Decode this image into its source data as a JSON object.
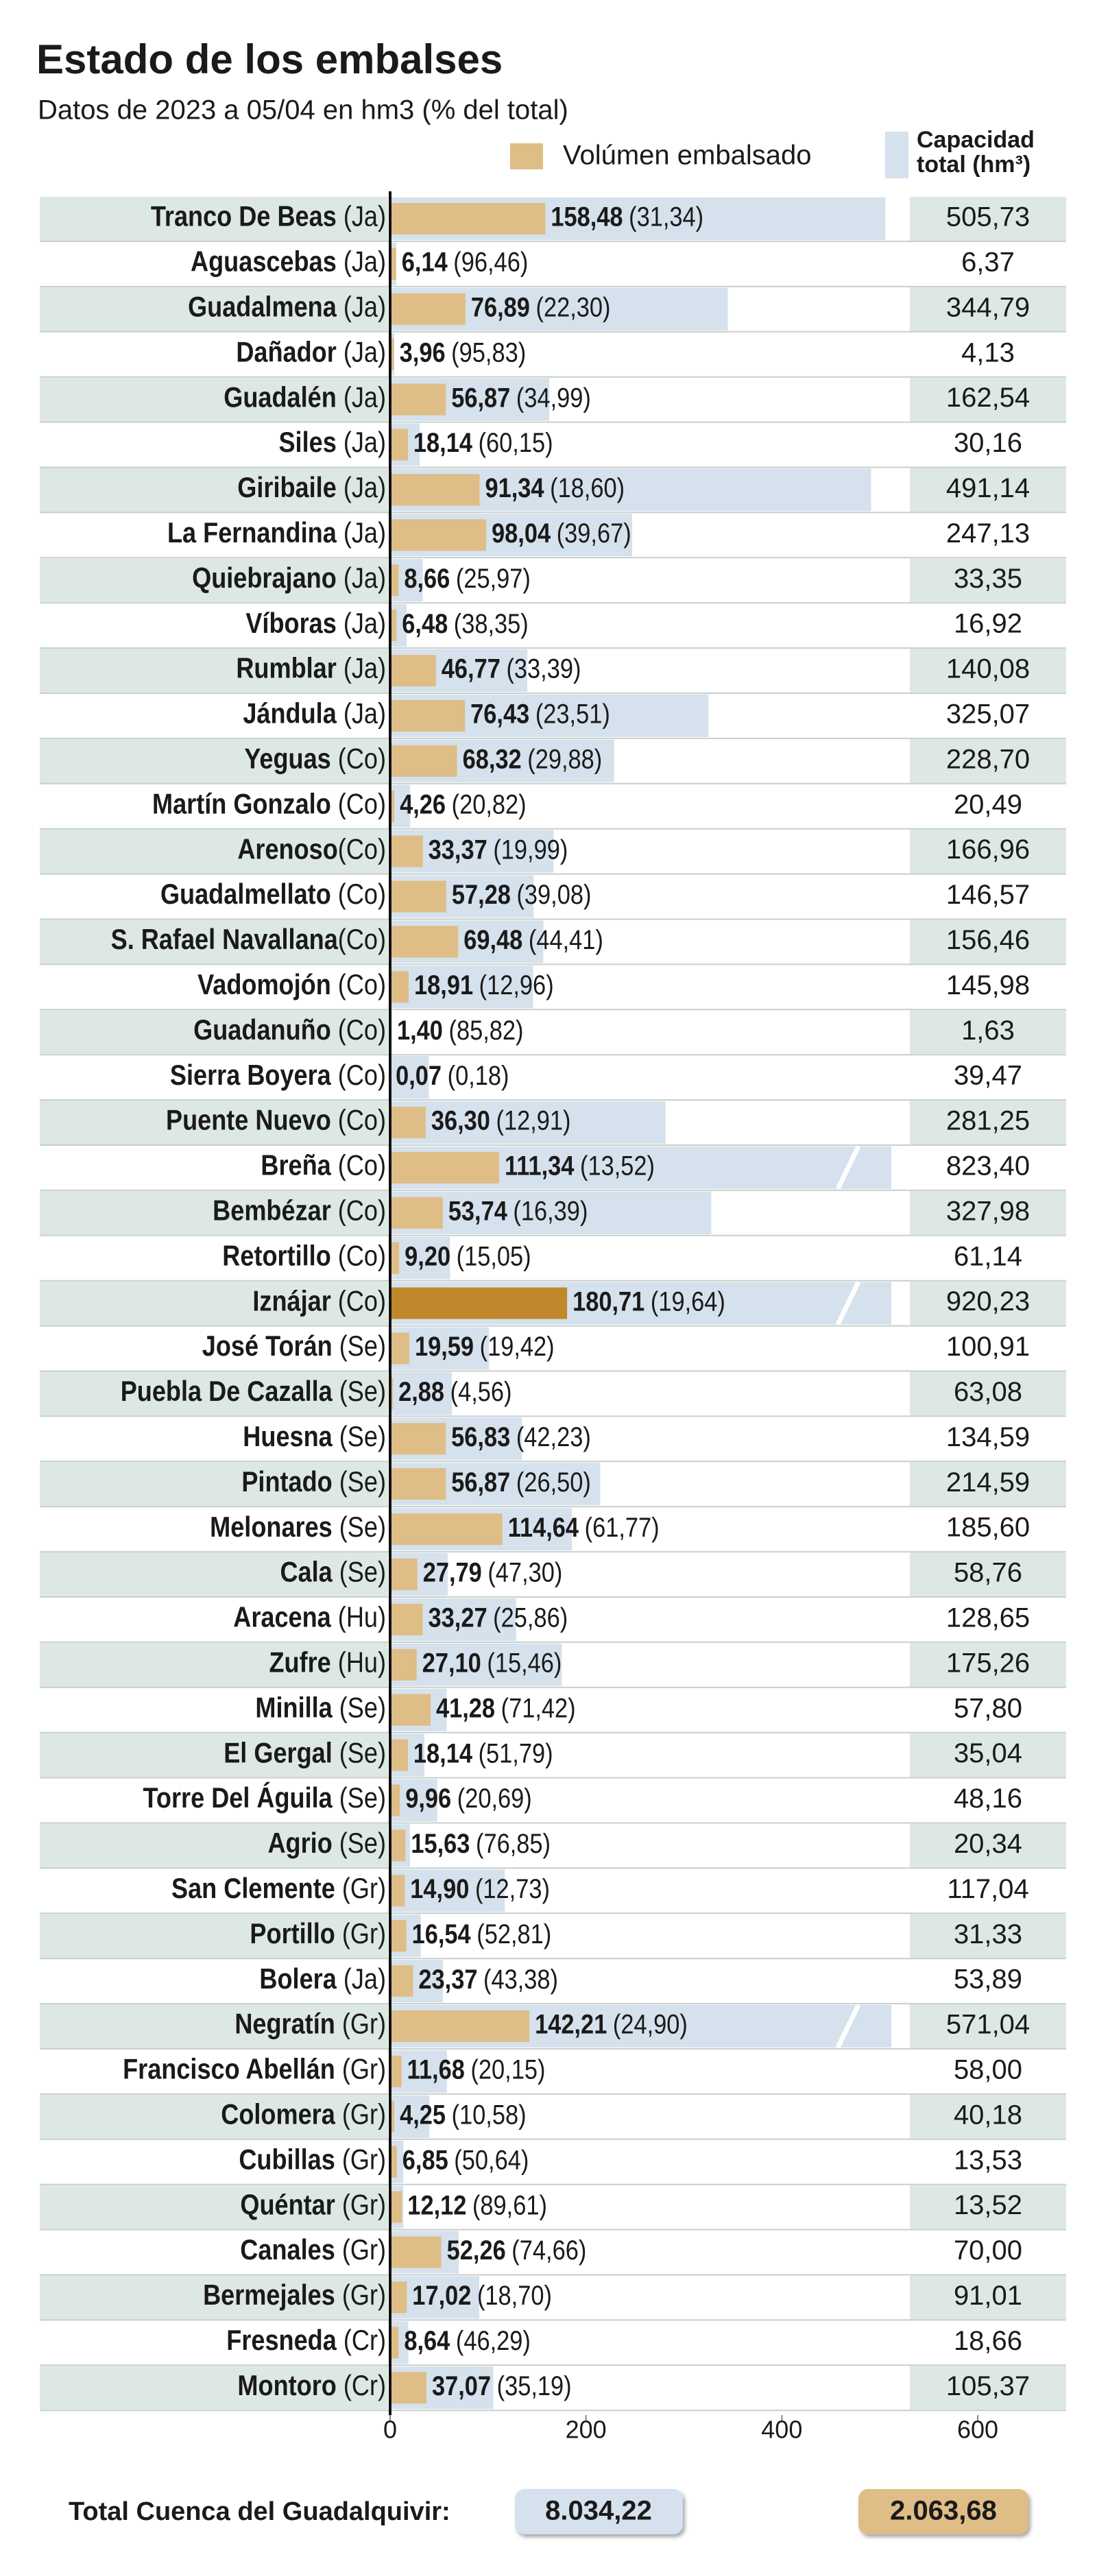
{
  "chart_data": {
    "type": "bar",
    "title": "Estado de los embalses",
    "subtitle": "Datos de 2023 a 05/04 en hm3 (% del total)",
    "categories": [
      "Tranco De Beas (Ja)",
      "Aguascebas (Ja)",
      "Guadalmena (Ja)",
      "Dañador (Ja)",
      "Guadalén (Ja)",
      "Siles (Ja)",
      "Giribaile (Ja)",
      "La Fernandina (Ja)",
      "Quiebrajano (Ja)",
      "Víboras (Ja)",
      "Rumblar (Ja)",
      "Jándula (Ja)",
      "Yeguas (Co)",
      "Martín Gonzalo (Co)",
      "Arenoso(Co)",
      "Guadalmellato (Co)",
      "S. Rafael Navallana(Co)",
      "Vadomojón (Co)",
      "Guadanuño (Co)",
      "Sierra Boyera (Co)",
      "Puente Nuevo (Co)",
      "Breña (Co)",
      "Bembézar (Co)",
      "Retortillo (Co)",
      "Iznájar (Co)",
      "José Torán (Se)",
      "Puebla De Cazalla (Se)",
      "Huesna (Se)",
      "Pintado (Se)",
      "Melonares (Se)",
      "Cala (Se)",
      "Aracena (Hu)",
      "Zufre (Hu)",
      "Minilla (Se)",
      "El Gergal (Se)",
      "Torre Del Águila (Se)",
      "Agrio (Se)",
      "San Clemente (Gr)",
      "Portillo (Gr)",
      "Bolera (Ja)",
      "Negratín (Gr)",
      "Francisco Abellán (Gr)",
      "Colomera (Gr)",
      "Cubillas (Gr)",
      "Quéntar (Gr)",
      "Canales (Gr)",
      "Bermejales (Gr)",
      "Fresneda (Cr)",
      "Montoro (Cr)"
    ],
    "series": [
      {
        "name": "Volúmen embalsado",
        "color": "#dfbd86",
        "colors": [
          "#dfbd86",
          "#dfbd86",
          "#dfbd86",
          "#dfbd86",
          "#dfbd86",
          "#dfbd86",
          "#dfbd86",
          "#dfbd86",
          "#dfbd86",
          "#dfbd86",
          "#dfbd86",
          "#dfbd86",
          "#dfbd86",
          "#dfbd86",
          "#dfbd86",
          "#dfbd86",
          "#dfbd86",
          "#dfbd86",
          "#dfbd86",
          "#dfbd86",
          "#dfbd86",
          "#dfbd86",
          "#dfbd86",
          "#dfbd86",
          "#c0882a",
          "#dfbd86",
          "#dfbd86",
          "#dfbd86",
          "#dfbd86",
          "#dfbd86",
          "#dfbd86",
          "#dfbd86",
          "#dfbd86",
          "#dfbd86",
          "#dfbd86",
          "#dfbd86",
          "#dfbd86",
          "#dfbd86",
          "#dfbd86",
          "#dfbd86",
          "#dfbd86",
          "#dfbd86",
          "#dfbd86",
          "#dfbd86",
          "#dfbd86",
          "#dfbd86",
          "#dfbd86",
          "#dfbd86",
          "#dfbd86"
        ],
        "values": [
          158.48,
          6.14,
          76.89,
          3.96,
          56.87,
          18.14,
          91.34,
          98.04,
          8.66,
          6.48,
          46.77,
          76.43,
          68.32,
          4.26,
          33.37,
          57.28,
          69.48,
          18.91,
          1.4,
          0.07,
          36.3,
          111.34,
          53.74,
          9.2,
          180.71,
          19.59,
          2.88,
          56.83,
          56.87,
          114.64,
          27.79,
          33.27,
          27.1,
          41.28,
          18.14,
          9.96,
          15.63,
          14.9,
          16.54,
          23.37,
          142.21,
          11.68,
          4.25,
          6.85,
          12.12,
          52.26,
          17.02,
          8.64,
          37.07
        ],
        "value_labels": [
          "158,48",
          "6,14",
          "76,89",
          "3,96",
          "56,87",
          "18,14",
          "91,34",
          "98,04",
          "8,66",
          "6,48",
          "46,77",
          "76,43",
          "68,32",
          "4,26",
          "33,37",
          "57,28",
          "69,48",
          "18,91",
          "1,40",
          "0,07",
          "36,30",
          "111,34",
          "53,74",
          "9,20",
          "180,71",
          "19,59",
          "2,88",
          "56,83",
          "56,87",
          "114,64",
          "27,79",
          "33,27",
          "27,10",
          "41,28",
          "18,14",
          "9,96",
          "15,63",
          "14,90",
          "16,54",
          "23,37",
          "142,21",
          "11,68",
          "4,25",
          "6,85",
          "12,12",
          "52,26",
          "17,02",
          "8,64",
          "37,07"
        ],
        "percent_labels": [
          "(31,34)",
          "(96,46)",
          "(22,30)",
          "(95,83)",
          "(34,99)",
          "(60,15)",
          "(18,60)",
          "(39,67)",
          "(25,97)",
          "(38,35)",
          "(33,39)",
          "(23,51)",
          "(29,88)",
          "(20,82)",
          "(19,99)",
          "(39,08)",
          "(44,41)",
          "(12,96)",
          "(85,82)",
          "(0,18)",
          "(12,91)",
          "(13,52)",
          "(16,39)",
          "(15,05)",
          "(19,64)",
          "(19,42)",
          "(4,56)",
          "(42,23)",
          "(26,50)",
          "(61,77)",
          "(47,30)",
          "(25,86)",
          "(15,46)",
          "(71,42)",
          "(51,79)",
          "(20,69)",
          "(76,85)",
          "(12,73)",
          "(52,81)",
          "(43,38)",
          "(24,90)",
          "(20,15)",
          "(10,58)",
          "(50,64)",
          "(89,61)",
          "(74,66)",
          "(18,70)",
          "(46,29)",
          "(35,19)"
        ]
      },
      {
        "name": "Capacidad total (hm³)",
        "color": "#d5e1ec",
        "values": [
          505.73,
          6.37,
          344.79,
          4.13,
          162.54,
          30.16,
          491.14,
          247.13,
          33.35,
          16.92,
          140.08,
          325.07,
          228.7,
          20.49,
          166.96,
          146.57,
          156.46,
          145.98,
          1.63,
          39.47,
          281.25,
          823.4,
          327.98,
          61.14,
          920.23,
          100.91,
          63.08,
          134.59,
          214.59,
          185.6,
          58.76,
          128.65,
          175.26,
          57.8,
          35.04,
          48.16,
          20.34,
          117.04,
          31.33,
          53.89,
          571.04,
          58,
          40.18,
          13.53,
          13.52,
          70,
          91.01,
          18.66,
          105.37
        ],
        "value_labels": [
          "505,73",
          "6,37",
          "344,79",
          "4,13",
          "162,54",
          "30,16",
          "491,14",
          "247,13",
          "33,35",
          "16,92",
          "140,08",
          "325,07",
          "228,70",
          "20,49",
          "166,96",
          "146,57",
          "156,46",
          "145,98",
          "1,63",
          "39,47",
          "281,25",
          "823,40",
          "327,98",
          "61,14",
          "920,23",
          "100,91",
          "63,08",
          "134,59",
          "214,59",
          "185,60",
          "58,76",
          "128,65",
          "175,26",
          "57,80",
          "35,04",
          "48,16",
          "20,34",
          "117,04",
          "31,33",
          "53,89",
          "571,04",
          "58,00",
          "40,18",
          "13,53",
          "13,52",
          "70,00",
          "91,01",
          "18,66",
          "105,37"
        ]
      }
    ],
    "xlim": [
      0,
      600
    ],
    "xticks": [
      0,
      200,
      400,
      600
    ],
    "grid": false,
    "band_color": "#dde8e2",
    "total": {
      "label": "Total Cuenca del Guadalquivir:",
      "capacity": {
        "value": 8034.22,
        "label": "8.034,22"
      },
      "volume": {
        "value": 2063.68,
        "label": "2.063,68"
      }
    }
  }
}
